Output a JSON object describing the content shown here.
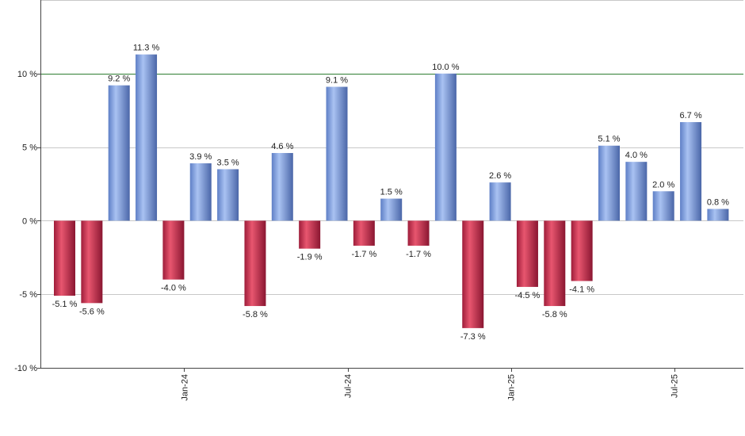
{
  "chart_data": {
    "type": "bar",
    "title": "",
    "xlabel": "",
    "ylabel": "",
    "ylim": [
      -10,
      15
    ],
    "grid": true,
    "legend": "none",
    "y_ticks": [
      {
        "value": 10,
        "label": "10 %"
      },
      {
        "value": 5,
        "label": "5 %"
      },
      {
        "value": 0,
        "label": "0 %"
      },
      {
        "value": -5,
        "label": "-5 %"
      },
      {
        "value": -10,
        "label": "-10 %"
      }
    ],
    "x_ticks": [
      {
        "index": 4.5,
        "label": "Jan-24"
      },
      {
        "index": 10.5,
        "label": "Jul-24"
      },
      {
        "index": 16.5,
        "label": "Jan-25"
      },
      {
        "index": 22.5,
        "label": "Jul-25"
      }
    ],
    "reference_line": {
      "value": 10,
      "color": "#2e7d32"
    },
    "colors": {
      "positive": "#7d9fe0",
      "negative": "#c8304f",
      "grid": "#c8c8c8",
      "axis": "#444444"
    },
    "values": [
      -5.1,
      -5.6,
      9.2,
      11.3,
      -4.0,
      3.9,
      3.5,
      -5.8,
      4.6,
      -1.9,
      9.1,
      -1.7,
      1.5,
      -1.7,
      10.0,
      -7.3,
      2.6,
      -4.5,
      -5.8,
      -4.1,
      5.1,
      4.0,
      2.0,
      6.7,
      0.8
    ],
    "data_labels": [
      "-5.1 %",
      "-5.6 %",
      "9.2 %",
      "11.3 %",
      "-4.0 %",
      "3.9 %",
      "3.5 %",
      "-5.8 %",
      "4.6 %",
      "-1.9 %",
      "9.1 %",
      "-1.7 %",
      "1.5 %",
      "-1.7 %",
      "10.0 %",
      "-7.3 %",
      "2.6 %",
      "-4.5 %",
      "-5.8 %",
      "-4.1 %",
      "5.1 %",
      "4.0 %",
      "2.0 %",
      "6.7 %",
      "0.8 %"
    ]
  }
}
